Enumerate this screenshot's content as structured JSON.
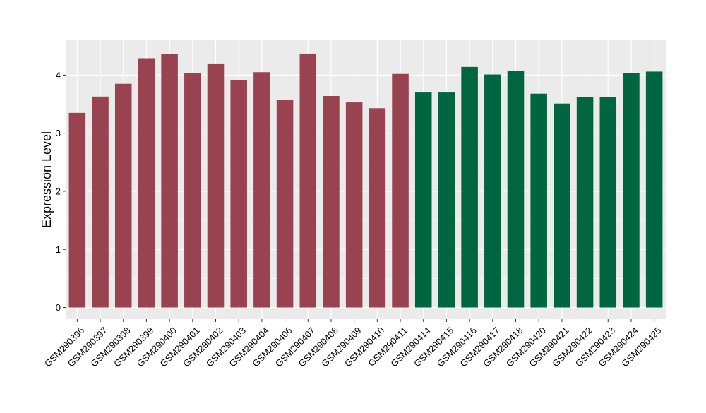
{
  "chart_data": {
    "type": "bar",
    "title": "",
    "xlabel": "",
    "ylabel": "Expression Level",
    "ylim": [
      -0.2,
      4.6
    ],
    "yticks": [
      0,
      1,
      2,
      3,
      4
    ],
    "grid": true,
    "categories": [
      "GSM290396",
      "GSM290397",
      "GSM290398",
      "GSM290399",
      "GSM290400",
      "GSM290401",
      "GSM290402",
      "GSM290403",
      "GSM290404",
      "GSM290406",
      "GSM290407",
      "GSM290408",
      "GSM290409",
      "GSM290410",
      "GSM290411",
      "GSM290414",
      "GSM290415",
      "GSM290416",
      "GSM290417",
      "GSM290418",
      "GSM290420",
      "GSM290421",
      "GSM290422",
      "GSM290423",
      "GSM290424",
      "GSM290425"
    ],
    "values": [
      3.35,
      3.63,
      3.85,
      4.29,
      4.36,
      4.03,
      4.2,
      3.91,
      4.05,
      3.57,
      4.37,
      3.64,
      3.53,
      3.43,
      4.02,
      3.7,
      3.7,
      4.14,
      4.01,
      4.07,
      3.68,
      3.51,
      3.62,
      3.62,
      4.03,
      4.06
    ],
    "groups": [
      0,
      0,
      0,
      0,
      0,
      0,
      0,
      0,
      0,
      0,
      0,
      0,
      0,
      0,
      0,
      1,
      1,
      1,
      1,
      1,
      1,
      1,
      1,
      1,
      1,
      1
    ],
    "group_colors": [
      "#9a4350",
      "#006641"
    ],
    "panel_background": "#ebebeb",
    "grid_color": "#ffffff"
  }
}
